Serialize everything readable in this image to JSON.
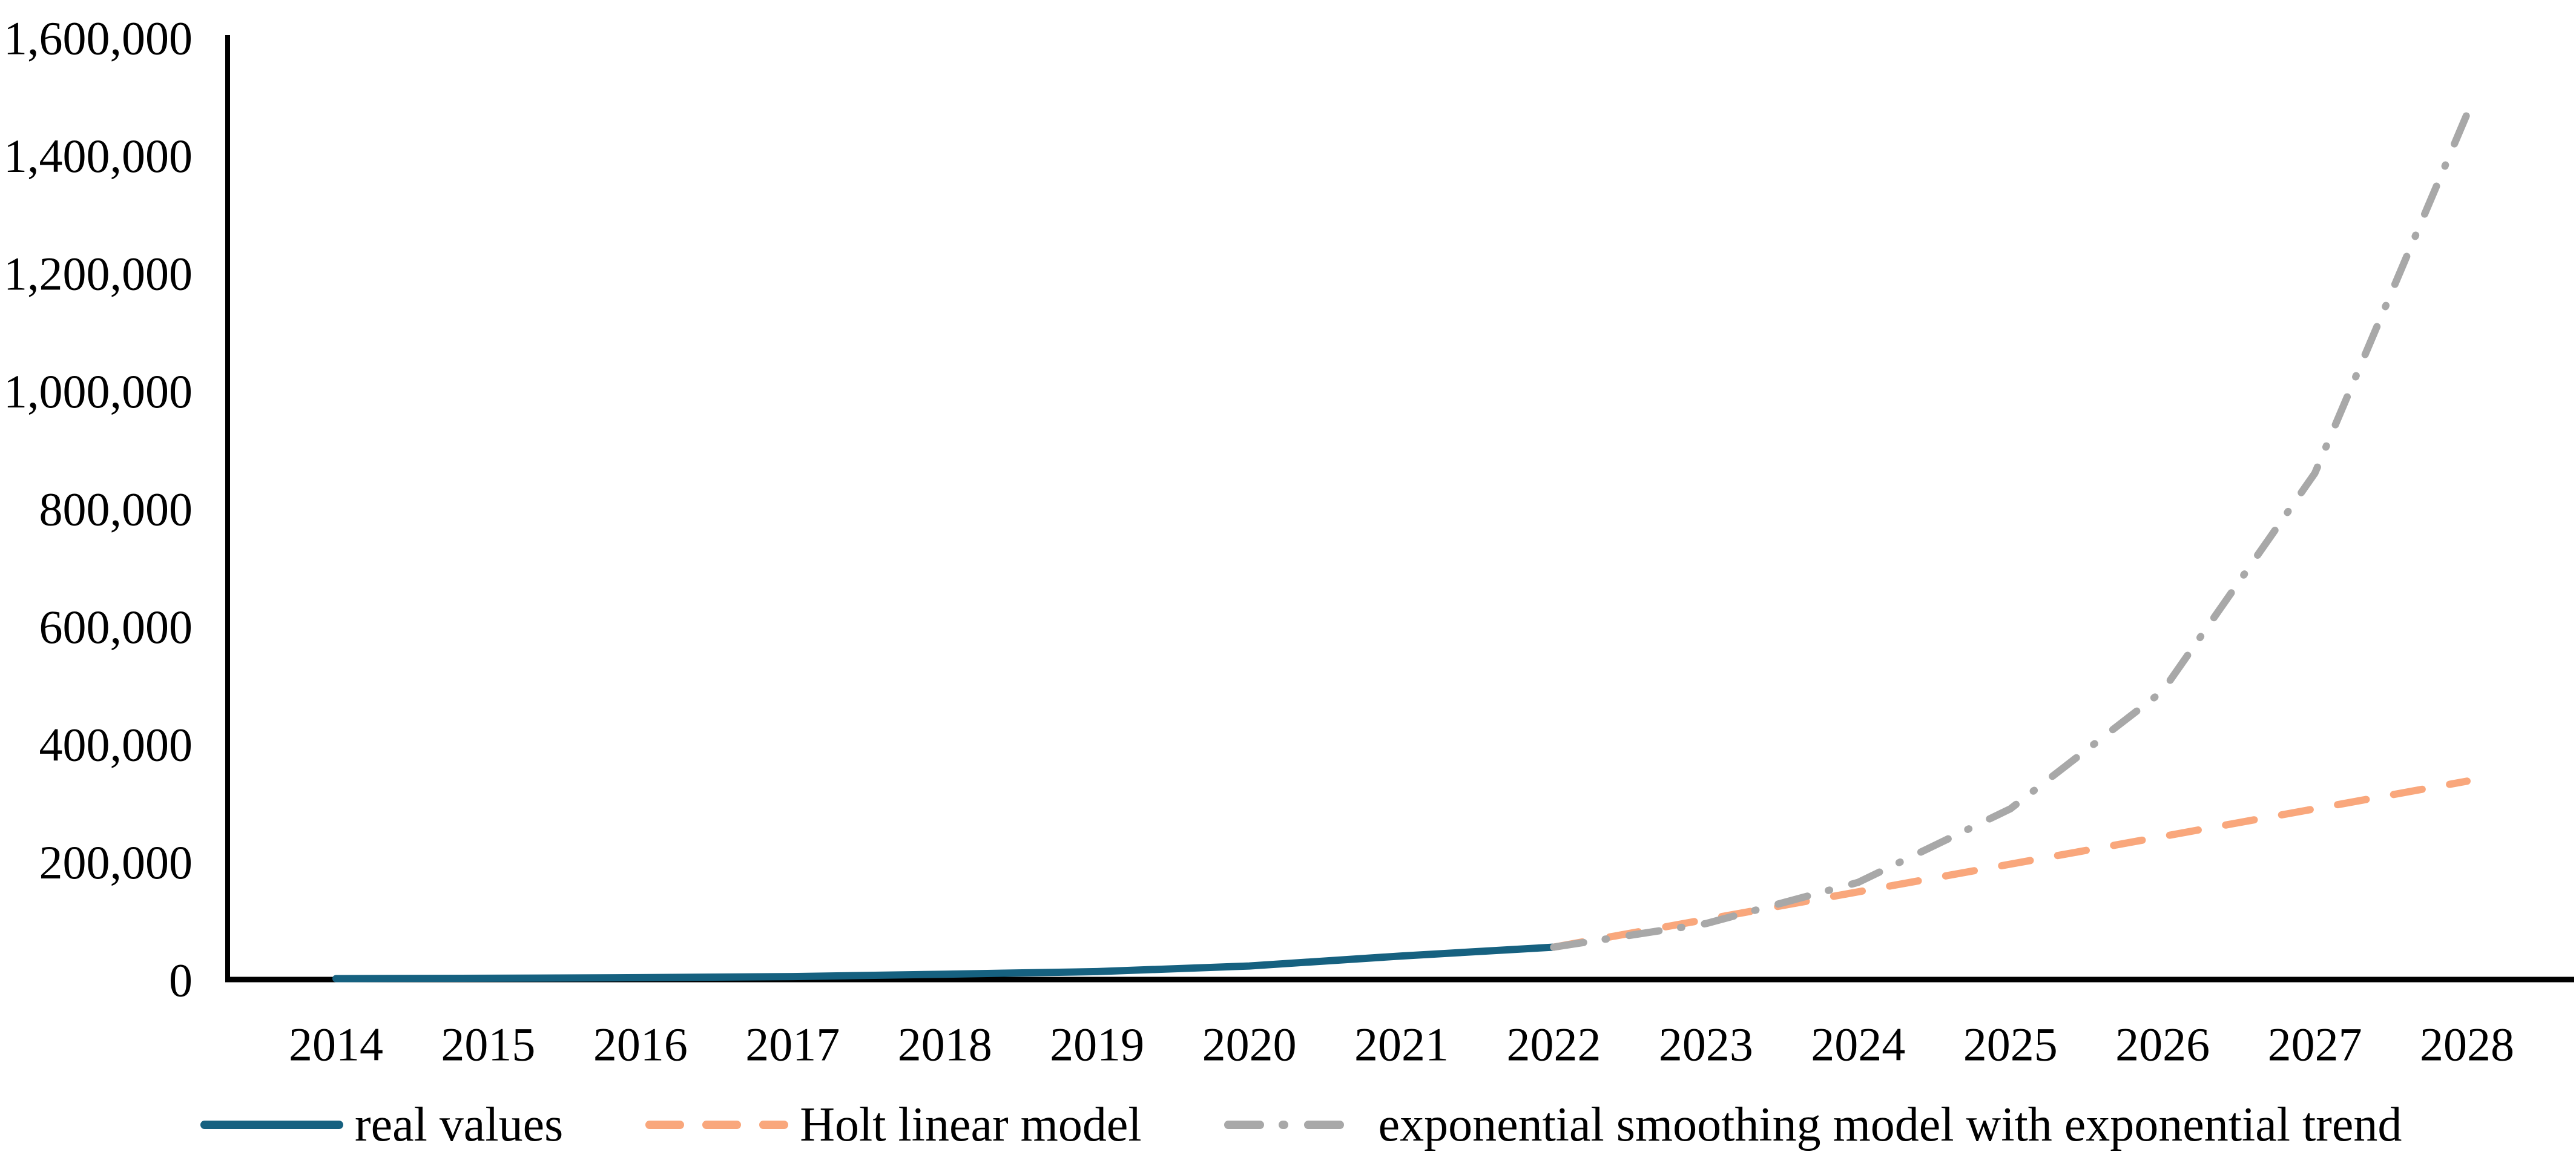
{
  "chart_data": {
    "type": "line",
    "title": "",
    "xlabel": "",
    "ylabel": "",
    "grid": false,
    "legend_position": "bottom",
    "categories": [
      "2014",
      "2015",
      "2016",
      "2017",
      "2018",
      "2019",
      "2020",
      "2021",
      "2022",
      "2023",
      "2024",
      "2025",
      "2026",
      "2027",
      "2028"
    ],
    "y_axis": {
      "min": 0,
      "max": 1600000,
      "step": 200000,
      "tick_labels": [
        "0",
        "200,000",
        "400,000",
        "600,000",
        "800,000",
        "1,000,000",
        "1,200,000",
        "1,400,000",
        "1,600,000"
      ]
    },
    "series": [
      {
        "name": "real values",
        "color": "#166180",
        "style": "solid",
        "values": [
          1500,
          2200,
          3200,
          5000,
          9000,
          13500,
          23000,
          40000,
          55000,
          null,
          null,
          null,
          null,
          null,
          null
        ]
      },
      {
        "name": "Holt linear model",
        "color": "#F9A77C",
        "style": "dashed",
        "values": [
          null,
          null,
          null,
          null,
          null,
          null,
          null,
          null,
          55000,
          102000,
          149000,
          196000,
          243000,
          290000,
          337000
        ]
      },
      {
        "name": "exponential smoothing model with exponential trend",
        "color": "#A8A8A8",
        "style": "dash-dot",
        "values": [
          null,
          null,
          null,
          null,
          null,
          null,
          null,
          null,
          55000,
          95000,
          165000,
          290000,
          490000,
          860000,
          1470000
        ]
      }
    ]
  },
  "colors": {
    "axis": "#000000",
    "text": "#000000",
    "background": "#FFFFFF"
  }
}
